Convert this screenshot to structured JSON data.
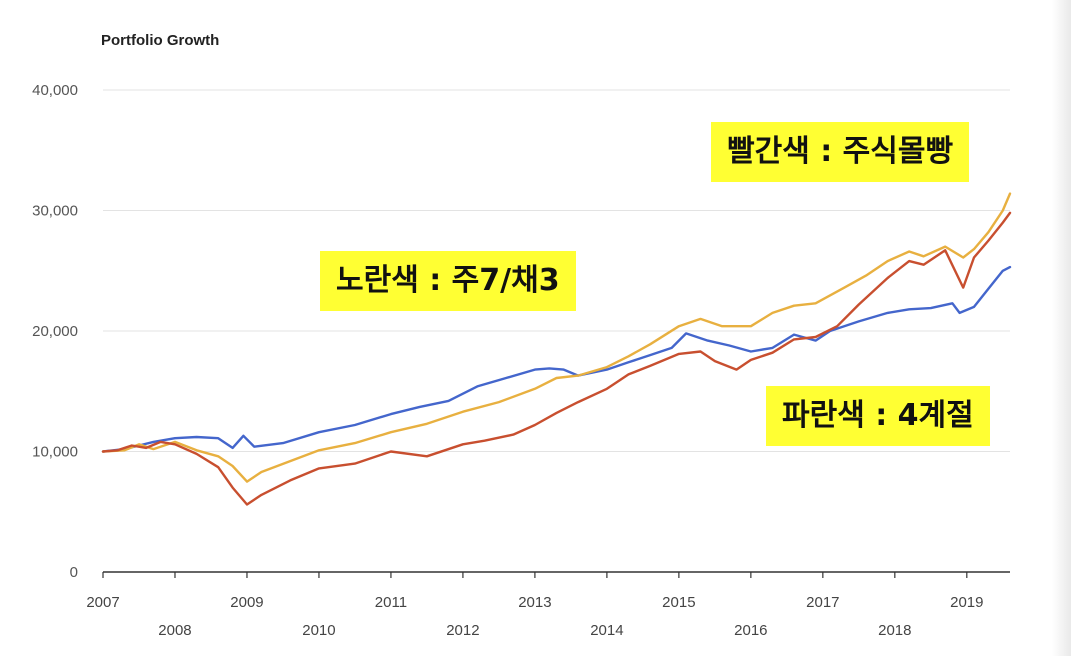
{
  "chart_data": {
    "type": "line",
    "title": "Portfolio Growth",
    "ylim": [
      0,
      40000
    ],
    "yticks": [
      "0",
      "10,000",
      "20,000",
      "30,000",
      "40,000"
    ],
    "xlim": [
      2007.0,
      2019.6
    ],
    "xticks": [
      "2007",
      "2008",
      "2009",
      "2010",
      "2011",
      "2012",
      "2013",
      "2014",
      "2015",
      "2016",
      "2017",
      "2018",
      "2019"
    ],
    "grid": true,
    "series": [
      {
        "color": "#4466cc",
        "x": [
          2007.0,
          2007.3,
          2007.5,
          2007.7,
          2008.0,
          2008.3,
          2008.6,
          2008.8,
          2008.95,
          2009.1,
          2009.5,
          2010.0,
          2010.5,
          2011.0,
          2011.4,
          2011.8,
          2012.2,
          2012.6,
          2013.0,
          2013.2,
          2013.4,
          2013.6,
          2014.0,
          2014.3,
          2014.6,
          2014.9,
          2015.1,
          2015.4,
          2015.7,
          2016.0,
          2016.3,
          2016.6,
          2016.9,
          2017.1,
          2017.5,
          2017.9,
          2018.2,
          2018.5,
          2018.8,
          2018.9,
          2019.1,
          2019.3,
          2019.5,
          2019.6
        ],
        "values": [
          10000,
          10200,
          10500,
          10800,
          11100,
          11200,
          11100,
          10300,
          11300,
          10400,
          10700,
          11600,
          12200,
          13100,
          13700,
          14200,
          15400,
          16100,
          16800,
          16900,
          16800,
          16300,
          16800,
          17400,
          18000,
          18600,
          19800,
          19200,
          18800,
          18300,
          18600,
          19700,
          19200,
          20000,
          20800,
          21500,
          21800,
          21900,
          22300,
          21500,
          22000,
          23500,
          25000,
          25300
        ]
      },
      {
        "color": "#e8b040",
        "x": [
          2007.0,
          2007.3,
          2007.5,
          2007.7,
          2008.0,
          2008.3,
          2008.6,
          2008.8,
          2009.0,
          2009.2,
          2009.6,
          2010.0,
          2010.5,
          2011.0,
          2011.5,
          2012.0,
          2012.5,
          2013.0,
          2013.3,
          2013.6,
          2014.0,
          2014.3,
          2014.6,
          2015.0,
          2015.3,
          2015.6,
          2016.0,
          2016.3,
          2016.6,
          2016.9,
          2017.3,
          2017.6,
          2017.9,
          2018.2,
          2018.4,
          2018.7,
          2018.95,
          2019.1,
          2019.3,
          2019.5,
          2019.6
        ],
        "values": [
          10000,
          10100,
          10600,
          10200,
          10800,
          10100,
          9600,
          8800,
          7500,
          8300,
          9200,
          10100,
          10700,
          11600,
          12300,
          13300,
          14100,
          15200,
          16100,
          16300,
          17000,
          17900,
          18900,
          20400,
          21000,
          20400,
          20400,
          21500,
          22100,
          22300,
          23600,
          24600,
          25800,
          26600,
          26200,
          27000,
          26100,
          26800,
          28200,
          30000,
          31400
        ]
      },
      {
        "color": "#c84f2f",
        "x": [
          2007.0,
          2007.2,
          2007.4,
          2007.6,
          2007.8,
          2008.0,
          2008.3,
          2008.6,
          2008.8,
          2009.0,
          2009.2,
          2009.6,
          2010.0,
          2010.5,
          2011.0,
          2011.5,
          2012.0,
          2012.3,
          2012.7,
          2013.0,
          2013.3,
          2013.6,
          2014.0,
          2014.3,
          2014.6,
          2015.0,
          2015.3,
          2015.5,
          2015.8,
          2016.0,
          2016.3,
          2016.6,
          2016.9,
          2017.2,
          2017.5,
          2017.9,
          2018.2,
          2018.4,
          2018.7,
          2018.95,
          2019.1,
          2019.3,
          2019.5,
          2019.6
        ],
        "values": [
          10000,
          10100,
          10500,
          10300,
          10800,
          10600,
          9800,
          8700,
          7000,
          5600,
          6400,
          7600,
          8600,
          9000,
          10000,
          9600,
          10600,
          10900,
          11400,
          12200,
          13200,
          14100,
          15200,
          16400,
          17100,
          18100,
          18300,
          17500,
          16800,
          17600,
          18200,
          19300,
          19500,
          20400,
          22200,
          24400,
          25800,
          25500,
          26700,
          23600,
          26100,
          27500,
          29000,
          29800
        ]
      }
    ]
  },
  "annotations": {
    "red": "빨간색 : 주식몰빵",
    "yellow": "노란색 : 주7/채3",
    "blue": "파란색 : 4계절"
  }
}
